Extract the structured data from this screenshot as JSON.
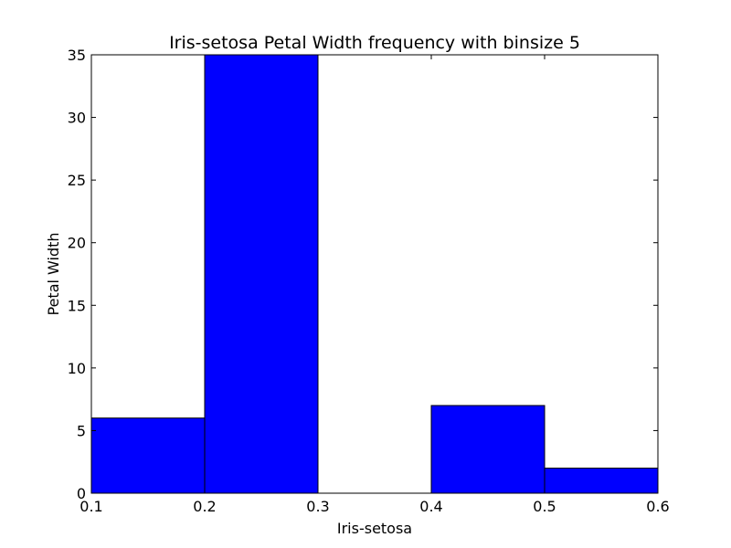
{
  "chart_data": {
    "type": "bar",
    "title": "Iris-setosa Petal Width frequency with binsize 5",
    "xlabel": "Iris-setosa",
    "ylabel": "Petal Width",
    "bins": [
      {
        "x0": 0.1,
        "x1": 0.2,
        "value": 6
      },
      {
        "x0": 0.2,
        "x1": 0.3,
        "value": 35
      },
      {
        "x0": 0.3,
        "x1": 0.4,
        "value": 0
      },
      {
        "x0": 0.4,
        "x1": 0.5,
        "value": 7
      },
      {
        "x0": 0.5,
        "x1": 0.6,
        "value": 2
      }
    ],
    "xlim": [
      0.1,
      0.6
    ],
    "ylim": [
      0,
      35
    ],
    "xticks": [
      "0.1",
      "0.2",
      "0.3",
      "0.4",
      "0.5",
      "0.6"
    ],
    "yticks": [
      "0",
      "5",
      "10",
      "15",
      "20",
      "25",
      "30",
      "35"
    ],
    "bar_color": "#0000ff",
    "grid": false
  }
}
